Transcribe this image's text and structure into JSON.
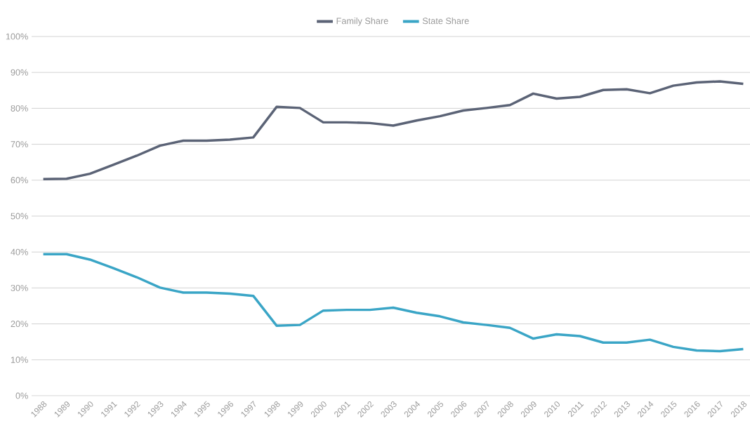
{
  "chart_data": {
    "type": "line",
    "categories": [
      "1988",
      "1989",
      "1990",
      "1991",
      "1992",
      "1993",
      "1994",
      "1995",
      "1996",
      "1997",
      "1998",
      "1999",
      "2000",
      "2001",
      "2002",
      "2003",
      "2004",
      "2005",
      "2006",
      "2007",
      "2008",
      "2009",
      "2010",
      "2011",
      "2012",
      "2013",
      "2014",
      "2015",
      "2016",
      "2017",
      "2018"
    ],
    "series": [
      {
        "name": "Family Share",
        "color": "#5b6376",
        "values": [
          60.3,
          60.4,
          61.8,
          64.3,
          66.8,
          69.6,
          71.0,
          71.0,
          71.3,
          71.9,
          80.4,
          80.1,
          76.1,
          76.1,
          75.9,
          75.2,
          76.6,
          77.8,
          79.4,
          80.1,
          80.9,
          84.1,
          82.7,
          83.2,
          85.1,
          85.3,
          84.2,
          86.3,
          87.2,
          87.5,
          86.8
        ]
      },
      {
        "name": "State Share",
        "color": "#3aa5c6",
        "values": [
          39.4,
          39.4,
          37.9,
          35.5,
          33.0,
          30.1,
          28.7,
          28.7,
          28.4,
          27.8,
          19.5,
          19.7,
          23.7,
          23.9,
          23.9,
          24.5,
          23.1,
          22.1,
          20.4,
          19.7,
          18.9,
          15.9,
          17.1,
          16.6,
          14.8,
          14.8,
          15.6,
          13.6,
          12.6,
          12.4,
          13.0
        ]
      }
    ],
    "ylim": [
      0,
      100
    ],
    "yticks": [
      {
        "value": 0,
        "label": "0%"
      },
      {
        "value": 10,
        "label": "10%"
      },
      {
        "value": 20,
        "label": "20%"
      },
      {
        "value": 30,
        "label": "30%"
      },
      {
        "value": 40,
        "label": "40%"
      },
      {
        "value": 50,
        "label": "50%"
      },
      {
        "value": 60,
        "label": "60%"
      },
      {
        "value": 70,
        "label": "70%"
      },
      {
        "value": 80,
        "label": "80%"
      },
      {
        "value": 90,
        "label": "90%"
      },
      {
        "value": 100,
        "label": "100%"
      }
    ],
    "grid": "y",
    "legend": "top",
    "marker": "none",
    "line_style": "solid"
  }
}
